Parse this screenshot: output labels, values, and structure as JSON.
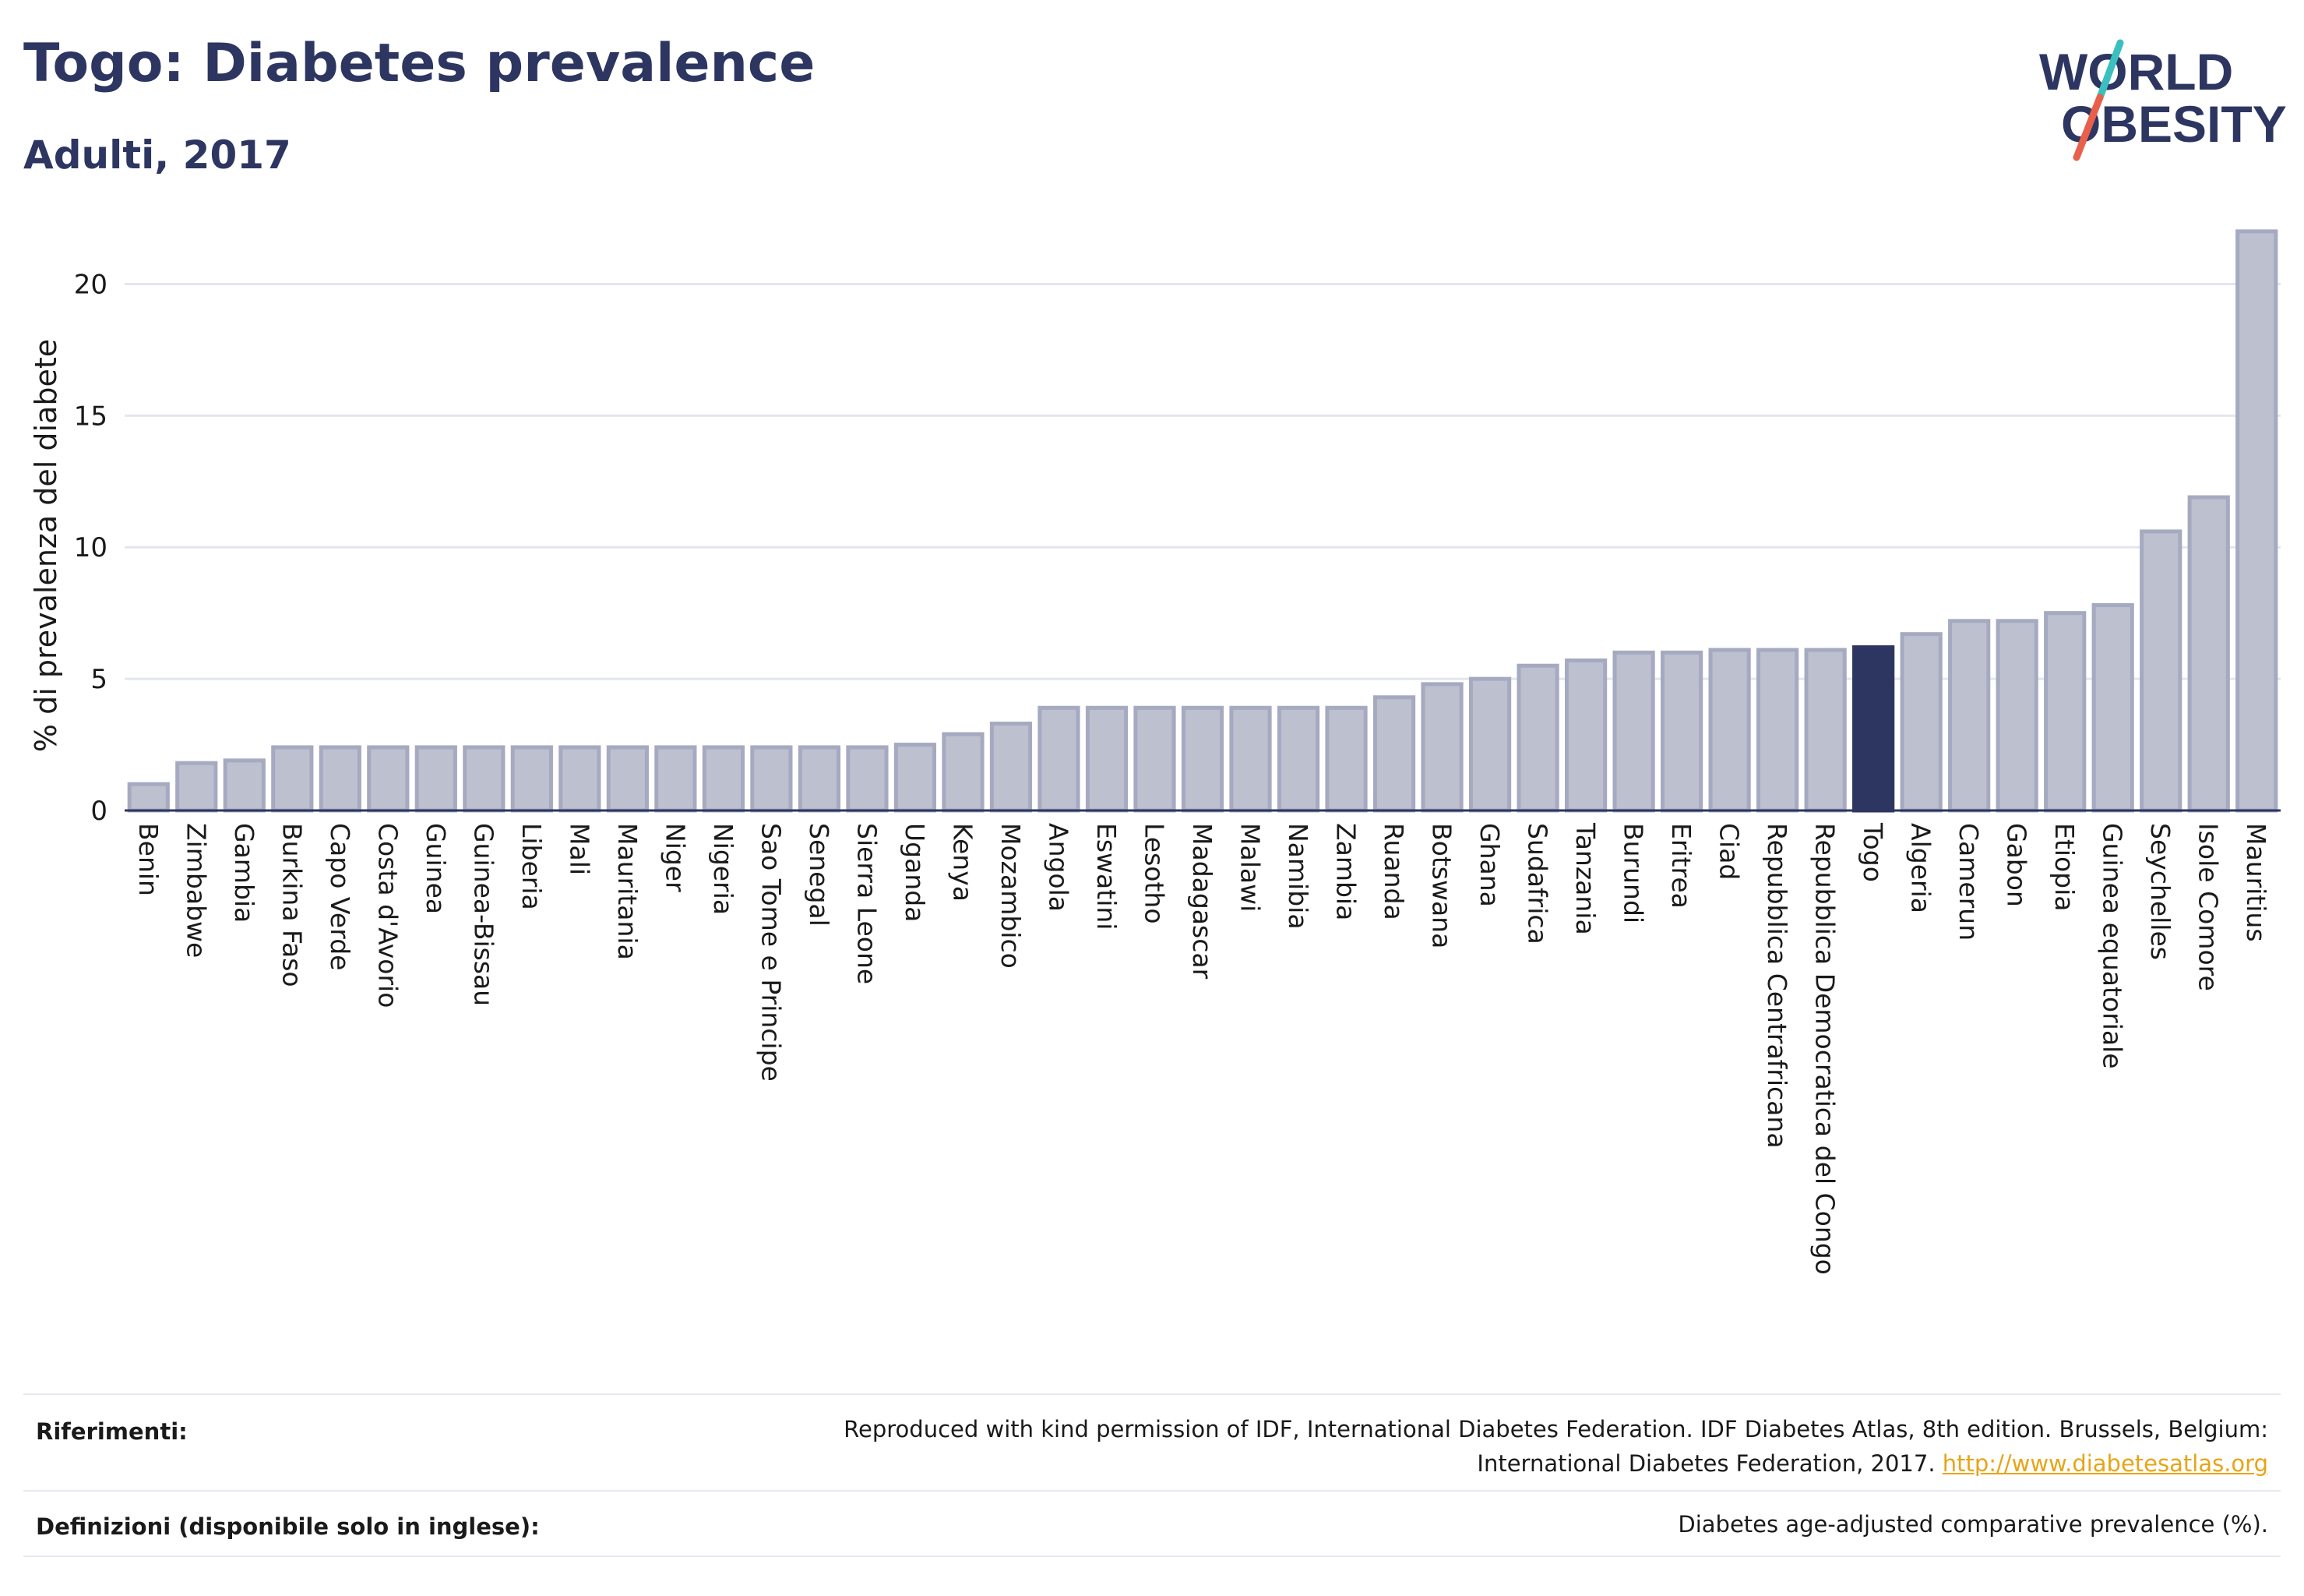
{
  "header": {
    "title": "Togo: Diabetes prevalence",
    "subtitle": "Adulti, 2017"
  },
  "logo": {
    "line1": "WORLD",
    "line2": "OBESITY",
    "colors": {
      "text": "#2d3561",
      "slash_top": "#3bbfbf",
      "slash_bottom": "#e8604c"
    }
  },
  "colors": {
    "bar": "#bcc0cf",
    "bar_stroke": "#a5aac1",
    "highlight": "#2d3561",
    "grid": "#e4e6ee",
    "axis": "#2d3561"
  },
  "chart_data": {
    "type": "bar",
    "ylabel": "% di prevalenza del diabete",
    "ylim": [
      0,
      22.5
    ],
    "yticks": [
      0,
      5,
      10,
      15,
      20
    ],
    "grid": true,
    "highlight_category": "Togo",
    "categories": [
      "Benin",
      "Zimbabwe",
      "Gambia",
      "Burkina Faso",
      "Capo Verde",
      "Costa d'Avorio",
      "Guinea",
      "Guinea-Bissau",
      "Liberia",
      "Mali",
      "Mauritania",
      "Niger",
      "Nigeria",
      "Sao Tome e Principe",
      "Senegal",
      "Sierra Leone",
      "Uganda",
      "Kenya",
      "Mozambico",
      "Angola",
      "Eswatini",
      "Lesotho",
      "Madagascar",
      "Malawi",
      "Namibia",
      "Zambia",
      "Ruanda",
      "Botswana",
      "Ghana",
      "Sudafrica",
      "Tanzania",
      "Burundi",
      "Eritrea",
      "Ciad",
      "Repubblica Centrafricana",
      "Repubblica Democratica del Congo",
      "Togo",
      "Algeria",
      "Camerun",
      "Gabon",
      "Etiopia",
      "Guinea equatoriale",
      "Seychelles",
      "Isole Comore",
      "Mauritius"
    ],
    "values": [
      1.0,
      1.8,
      1.9,
      2.4,
      2.4,
      2.4,
      2.4,
      2.4,
      2.4,
      2.4,
      2.4,
      2.4,
      2.4,
      2.4,
      2.4,
      2.4,
      2.5,
      2.9,
      3.3,
      3.9,
      3.9,
      3.9,
      3.9,
      3.9,
      3.9,
      3.9,
      4.3,
      4.8,
      5.0,
      5.5,
      5.7,
      6.0,
      6.0,
      6.1,
      6.1,
      6.1,
      6.2,
      6.7,
      7.2,
      7.2,
      7.5,
      7.8,
      10.6,
      11.9,
      22.0
    ]
  },
  "footer": {
    "references_label": "Riferimenti:",
    "references_line1": "Reproduced with kind permission of IDF, International Diabetes Federation. IDF Diabetes Atlas, 8th edition. Brussels, Belgium:",
    "references_line2": "International Diabetes Federation, 2017.",
    "references_link": "http://www.diabetesatlas.org",
    "definitions_label": "Definizioni (disponibile solo in inglese):",
    "definitions_text": "Diabetes age-adjusted comparative prevalence (%)."
  }
}
